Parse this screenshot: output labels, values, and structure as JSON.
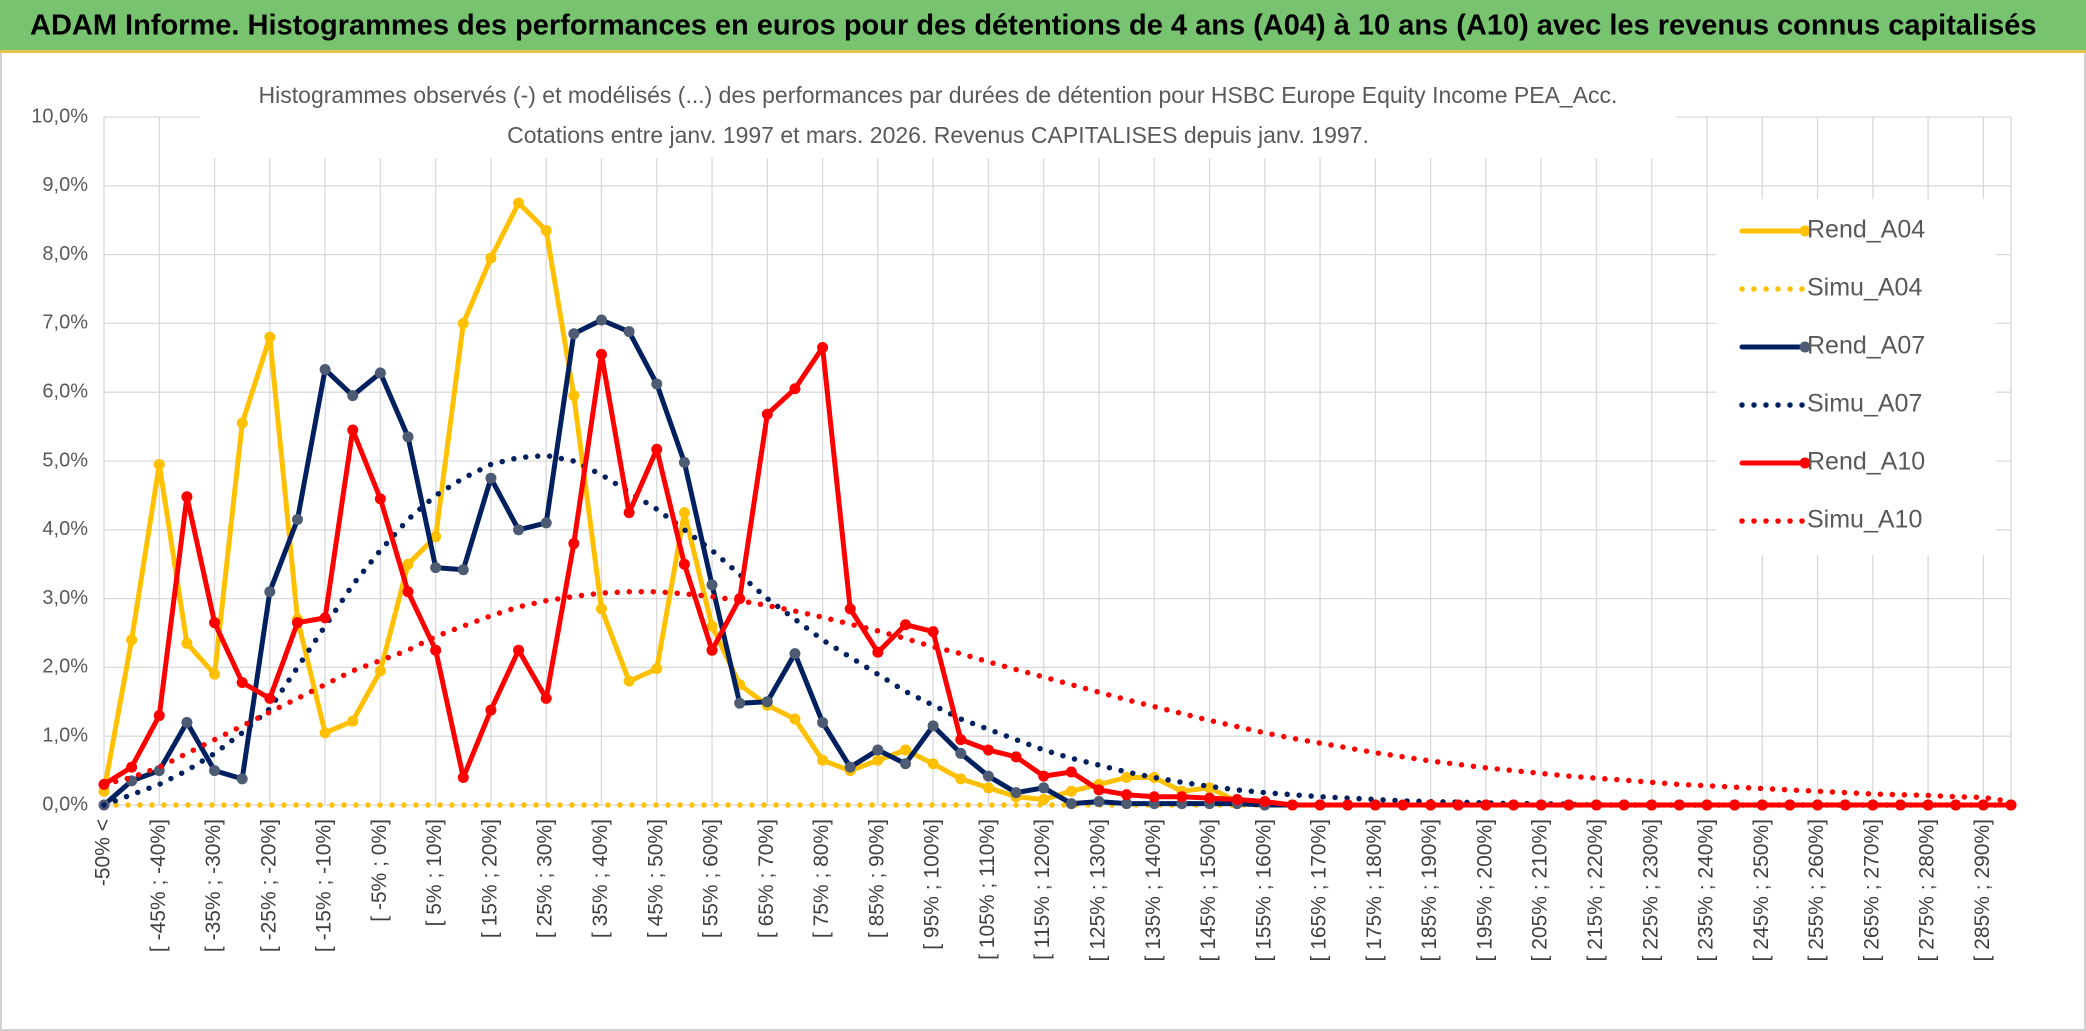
{
  "chart_data": {
    "type": "line",
    "title": "ADAM Informe. Histogrammes des performances en euros pour des détentions de 4 ans (A04) à 10 ans (A10) avec les revenus connus capitalisés",
    "subtitle": [
      "Histogrammes observés (-) et modélisés (...) des performances par durées de détention pour HSBC Europe Equity Income PEA_Acc.",
      "Cotations entre janv. 1997 et mars. 2026.  Revenus CAPITALISES depuis janv. 1997."
    ],
    "categories": [
      "-50% <",
      null,
      "[ -45% ; -40%]",
      null,
      "[ -35% ; -30%]",
      null,
      "[ -25% ; -20%]",
      null,
      "[ -15% ; -10%]",
      null,
      "[ -5% ; 0%]",
      null,
      "[ 5% ; 10%]",
      null,
      "[ 15% ; 20%]",
      null,
      "[ 25% ; 30%]",
      null,
      "[ 35% ; 40%]",
      null,
      "[ 45% ; 50%]",
      null,
      "[ 55% ; 60%]",
      null,
      "[ 65% ; 70%]",
      null,
      "[ 75% ; 80%]",
      null,
      "[ 85% ; 90%]",
      null,
      "[ 95% ; 100%]",
      null,
      "[ 105% ; 110%]",
      null,
      "[ 115% ; 120%]",
      null,
      "[ 125% ; 130%]",
      null,
      "[ 135% ; 140%]",
      null,
      "[ 145% ; 150%]",
      null,
      "[ 155% ; 160%]",
      null,
      "[ 165% ; 170%]",
      null,
      "[ 175% ; 180%]",
      null,
      "[ 185% ; 190%]",
      null,
      "[ 195% ; 200%]",
      null,
      "[ 205% ; 210%]",
      null,
      "[ 215% ; 220%]",
      null,
      "[ 225% ; 230%]",
      null,
      "[ 235% ; 240%]",
      null,
      "[ 245% ; 250%]",
      null,
      "[ 255% ; 260%]",
      null,
      "[ 265% ; 270%]",
      null,
      "[ 275% ; 280%]",
      null,
      "[ 285% ; 290%]",
      null
    ],
    "series": [
      {
        "name": "Rend_A04",
        "color": "#ffc000",
        "marker_color": "#ffc000",
        "style": "solid",
        "values": [
          0.2,
          2.4,
          4.95,
          2.35,
          1.9,
          5.55,
          6.8,
          2.7,
          1.05,
          1.22,
          1.95,
          3.5,
          3.9,
          7.0,
          7.95,
          8.75,
          8.35,
          5.95,
          2.85,
          1.8,
          1.98,
          4.25,
          2.6,
          1.75,
          1.45,
          1.25,
          0.65,
          0.5,
          0.65,
          0.8,
          0.6,
          0.38,
          0.25,
          0.12,
          0.08,
          0.2,
          0.3,
          0.4,
          0.4,
          0.2,
          0.25,
          0.05,
          0,
          0,
          0,
          0,
          0,
          0,
          0,
          0,
          0,
          0,
          0,
          0,
          0,
          0,
          0,
          0,
          0,
          0,
          0,
          0,
          0,
          0,
          0,
          0,
          0,
          0,
          0,
          0
        ]
      },
      {
        "name": "Simu_A04",
        "color": "#ffc000",
        "style": "dotted",
        "values": [
          0,
          0,
          0,
          0,
          0,
          0,
          0,
          0,
          0,
          0,
          0,
          0,
          0,
          0,
          0,
          0,
          0,
          0,
          0,
          0,
          0,
          0,
          0,
          0,
          0,
          0,
          0,
          0,
          0,
          0,
          0,
          0,
          0,
          0,
          0,
          0,
          0,
          0,
          0,
          0,
          0,
          0,
          0,
          0,
          0,
          0,
          0,
          0,
          0,
          0,
          0,
          0,
          0,
          0,
          0,
          0,
          0,
          0,
          0,
          0,
          0,
          0,
          0,
          0,
          0,
          0,
          0,
          0,
          0,
          0
        ]
      },
      {
        "name": "Rend_A07",
        "color": "#002060",
        "marker_color": "#4d5b73",
        "style": "solid",
        "values": [
          0.0,
          0.35,
          0.5,
          1.2,
          0.5,
          0.38,
          3.1,
          4.15,
          6.33,
          5.95,
          6.28,
          5.35,
          3.45,
          3.42,
          4.75,
          4.0,
          4.1,
          6.85,
          7.05,
          6.88,
          6.12,
          4.98,
          3.2,
          1.48,
          1.5,
          2.2,
          1.2,
          0.55,
          0.8,
          0.6,
          1.15,
          0.75,
          0.42,
          0.18,
          0.25,
          0.02,
          0.05,
          0.02,
          0.02,
          0.02,
          0.02,
          0.02,
          0,
          0,
          0,
          0,
          0,
          0,
          0,
          0,
          0,
          0,
          0,
          0,
          0,
          0,
          0,
          0,
          0,
          0,
          0,
          0,
          0,
          0,
          0,
          0,
          0,
          0,
          0,
          0
        ]
      },
      {
        "name": "Simu_A07",
        "color": "#002060",
        "style": "dotted",
        "values": [
          0.0,
          0.15,
          0.3,
          0.5,
          0.75,
          1.05,
          1.4,
          2.0,
          2.6,
          3.2,
          3.7,
          4.15,
          4.5,
          4.75,
          4.95,
          5.05,
          5.08,
          5.0,
          4.8,
          4.55,
          4.3,
          4.0,
          3.7,
          3.35,
          3.0,
          2.7,
          2.4,
          2.15,
          1.9,
          1.65,
          1.45,
          1.25,
          1.1,
          0.95,
          0.8,
          0.68,
          0.58,
          0.48,
          0.4,
          0.33,
          0.27,
          0.22,
          0.18,
          0.15,
          0.12,
          0.1,
          0.08,
          0.06,
          0.05,
          0.04,
          0.03,
          0.02,
          0.02,
          0.01,
          0,
          0,
          0,
          0,
          0,
          0,
          0,
          0,
          0,
          0,
          0,
          0,
          0,
          0,
          0,
          0
        ]
      },
      {
        "name": "Rend_A10",
        "color": "#ff0000",
        "marker_color": "#ff0000",
        "style": "solid",
        "values": [
          0.3,
          0.55,
          1.3,
          4.48,
          2.65,
          1.78,
          1.55,
          2.65,
          2.72,
          5.45,
          4.45,
          3.1,
          2.25,
          0.4,
          1.38,
          2.25,
          1.55,
          3.8,
          6.55,
          4.25,
          5.17,
          3.5,
          2.25,
          3.0,
          5.68,
          6.05,
          6.65,
          2.85,
          2.22,
          2.62,
          2.52,
          0.95,
          0.8,
          0.7,
          0.42,
          0.48,
          0.22,
          0.15,
          0.12,
          0.12,
          0.1,
          0.08,
          0.05,
          0,
          0,
          0,
          0,
          0,
          0,
          0,
          0,
          0,
          0,
          0,
          0,
          0,
          0,
          0,
          0,
          0,
          0,
          0,
          0,
          0,
          0,
          0,
          0,
          0,
          0,
          0
        ]
      },
      {
        "name": "Simu_A10",
        "color": "#ff0000",
        "style": "dotted",
        "values": [
          0.3,
          0.4,
          0.55,
          0.75,
          0.95,
          1.15,
          1.35,
          1.55,
          1.75,
          1.95,
          2.1,
          2.25,
          2.45,
          2.6,
          2.75,
          2.88,
          2.97,
          3.03,
          3.08,
          3.1,
          3.1,
          3.07,
          3.03,
          2.97,
          2.9,
          2.82,
          2.73,
          2.63,
          2.53,
          2.42,
          2.3,
          2.2,
          2.08,
          1.97,
          1.86,
          1.75,
          1.64,
          1.53,
          1.43,
          1.33,
          1.23,
          1.14,
          1.05,
          0.97,
          0.9,
          0.83,
          0.76,
          0.7,
          0.64,
          0.59,
          0.54,
          0.5,
          0.46,
          0.42,
          0.39,
          0.36,
          0.33,
          0.3,
          0.28,
          0.26,
          0.24,
          0.22,
          0.2,
          0.18,
          0.16,
          0.15,
          0.14,
          0.12,
          0.11,
          0.05
        ]
      }
    ],
    "ylim": [
      0,
      10
    ],
    "yticks": [
      {
        "value": 0,
        "label": "0,0%"
      },
      {
        "value": 1,
        "label": "1,0%"
      },
      {
        "value": 2,
        "label": "2,0%"
      },
      {
        "value": 3,
        "label": "3,0%"
      },
      {
        "value": 4,
        "label": "4,0%"
      },
      {
        "value": 5,
        "label": "5,0%"
      },
      {
        "value": 6,
        "label": "6,0%"
      },
      {
        "value": 7,
        "label": "7,0%"
      },
      {
        "value": 8,
        "label": "8,0%"
      },
      {
        "value": 9,
        "label": "9,0%"
      },
      {
        "value": 10,
        "label": "10,0%"
      }
    ],
    "grid": true,
    "legend": "right"
  }
}
